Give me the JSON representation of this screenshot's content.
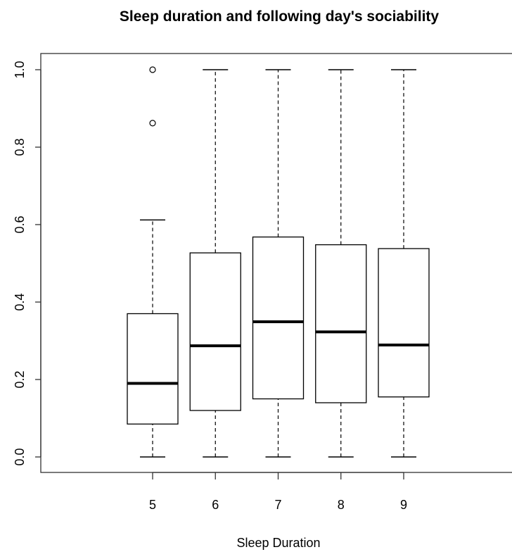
{
  "chart_data": {
    "type": "boxplot",
    "title": "Sleep duration and following day's sociability",
    "xlabel": "Sleep Duration",
    "ylabel": "",
    "ylim": [
      0,
      1
    ],
    "yticks": [
      "0.0",
      "0.2",
      "0.4",
      "0.6",
      "0.8",
      "1.0"
    ],
    "categories": [
      "5",
      "6",
      "7",
      "8",
      "9"
    ],
    "boxes": [
      {
        "category": "5",
        "whisker_low": 0.0,
        "q1": 0.085,
        "median": 0.19,
        "q3": 0.37,
        "whisker_high": 0.612,
        "outliers": [
          0.862,
          1.0
        ]
      },
      {
        "category": "6",
        "whisker_low": 0.0,
        "q1": 0.12,
        "median": 0.287,
        "q3": 0.527,
        "whisker_high": 1.0,
        "outliers": []
      },
      {
        "category": "7",
        "whisker_low": 0.0,
        "q1": 0.15,
        "median": 0.349,
        "q3": 0.568,
        "whisker_high": 1.0,
        "outliers": []
      },
      {
        "category": "8",
        "whisker_low": 0.0,
        "q1": 0.14,
        "median": 0.323,
        "q3": 0.548,
        "whisker_high": 1.0,
        "outliers": []
      },
      {
        "category": "9",
        "whisker_low": 0.0,
        "q1": 0.155,
        "median": 0.289,
        "q3": 0.538,
        "whisker_high": 1.0,
        "outliers": []
      }
    ],
    "grid": false,
    "legend": "none"
  }
}
